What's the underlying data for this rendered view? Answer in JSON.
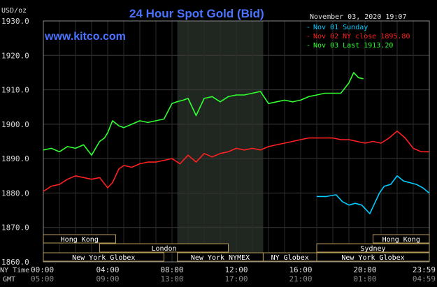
{
  "chart_data": {
    "type": "line",
    "title": "24 Hour Spot Gold (Bid)",
    "subtitle": "www.kitco.com",
    "date_label": "November 03, 2020 19:07",
    "ylabel": "USD/oz",
    "ylim": [
      1860,
      1930
    ],
    "xlim": [
      0,
      24
    ],
    "y_ticks": [
      "1930.0",
      "1920.0",
      "1910.0",
      "1900.0",
      "1890.0",
      "1880.0",
      "1870.0",
      "1860.0"
    ],
    "x_ticks_ny": [
      "00:00",
      "04:00",
      "08:00",
      "12:00",
      "16:00",
      "20:00",
      "23:59"
    ],
    "x_ticks_gmt": [
      "05:00",
      "09:00",
      "13:00",
      "17:00",
      "21:00",
      "01:00",
      "04:59"
    ],
    "x_row_labels": [
      "NY Time",
      "GMT"
    ],
    "shaded_hours": [
      8.33,
      13.67
    ],
    "legend": [
      {
        "dash": "-",
        "text": "Nov 01 Sunday",
        "color": "#00ccff"
      },
      {
        "dash": "-",
        "text": "Nov 02 NY close 1895.80",
        "color": "#ff2020"
      },
      {
        "dash": "-",
        "text": "Nov 03 Last 1913.20",
        "color": "#30ff30"
      }
    ],
    "sessions": [
      {
        "name": "Hong Kong",
        "row": 0,
        "start": 0,
        "end": 4.5
      },
      {
        "name": "Hong Kong",
        "row": 0,
        "start": 20.5,
        "end": 24
      },
      {
        "name": "London",
        "row": 1,
        "start": 3.5,
        "end": 11.5
      },
      {
        "name": "Sydney",
        "row": 1,
        "start": 17,
        "end": 24
      },
      {
        "name": "New York Globex",
        "row": 2,
        "start": 0,
        "end": 7.5
      },
      {
        "name": "New York NYMEX",
        "row": 2,
        "start": 8.33,
        "end": 13.67
      },
      {
        "name": "NY Globex",
        "row": 2,
        "start": 13.67,
        "end": 17
      },
      {
        "name": "New York Globex",
        "row": 2,
        "start": 17,
        "end": 24
      }
    ],
    "series": [
      {
        "color": "#00ccff",
        "x": [
          17.0,
          17.6,
          18.2,
          18.6,
          19.0,
          19.4,
          19.8,
          20.1,
          20.3,
          20.6,
          20.9,
          21.2,
          21.6,
          22.0,
          22.4,
          22.8,
          23.2,
          23.6,
          23.99
        ],
        "y": [
          1879.0,
          1879.0,
          1879.5,
          1877.5,
          1876.5,
          1877.0,
          1876.5,
          1875.0,
          1874.0,
          1877.0,
          1880.0,
          1882.0,
          1882.5,
          1885.0,
          1883.5,
          1883.0,
          1882.5,
          1881.5,
          1880.0
        ]
      },
      {
        "color": "#ff2020",
        "x": [
          0.0,
          0.5,
          1.0,
          1.5,
          2.0,
          2.5,
          3.0,
          3.5,
          4.0,
          4.3,
          4.7,
          5.0,
          5.5,
          6.0,
          6.5,
          7.0,
          7.5,
          8.0,
          8.5,
          9.0,
          9.5,
          10.0,
          10.5,
          11.0,
          11.5,
          12.0,
          12.5,
          13.0,
          13.5,
          14.0,
          14.5,
          15.0,
          15.5,
          16.0,
          16.5,
          17.0,
          17.5,
          18.0,
          18.5,
          19.0,
          19.5,
          20.0,
          20.5,
          21.0,
          21.5,
          22.0,
          22.5,
          23.0,
          23.5,
          23.99
        ],
        "y": [
          1880.5,
          1882.0,
          1882.5,
          1884.0,
          1885.0,
          1884.5,
          1884.0,
          1884.5,
          1881.5,
          1883.0,
          1887.0,
          1888.0,
          1887.5,
          1888.5,
          1889.0,
          1889.0,
          1889.5,
          1890.0,
          1888.5,
          1891.0,
          1889.0,
          1891.5,
          1890.5,
          1891.5,
          1892.0,
          1893.0,
          1892.5,
          1893.0,
          1892.5,
          1893.5,
          1894.0,
          1894.5,
          1895.0,
          1895.5,
          1896.0,
          1896.0,
          1896.0,
          1896.0,
          1895.5,
          1895.5,
          1895.0,
          1894.5,
          1895.0,
          1894.5,
          1896.0,
          1898.0,
          1896.0,
          1893.0,
          1892.0,
          1892.0
        ]
      },
      {
        "color": "#30ff30",
        "x": [
          0.0,
          0.5,
          1.0,
          1.5,
          2.0,
          2.5,
          3.0,
          3.5,
          3.8,
          4.0,
          4.3,
          4.7,
          5.0,
          5.5,
          6.0,
          6.5,
          7.0,
          7.5,
          8.0,
          8.3,
          8.7,
          9.0,
          9.5,
          10.0,
          10.5,
          11.0,
          11.5,
          12.0,
          12.5,
          13.0,
          13.5,
          14.0,
          14.5,
          15.0,
          15.5,
          16.0,
          16.5,
          17.0,
          17.5,
          18.0,
          18.5,
          19.0,
          19.3,
          19.6,
          19.9
        ],
        "y": [
          1892.5,
          1893.0,
          1892.0,
          1893.5,
          1893.0,
          1894.0,
          1891.0,
          1895.0,
          1896.0,
          1897.5,
          1901.0,
          1899.5,
          1899.0,
          1900.0,
          1901.0,
          1900.5,
          1901.0,
          1901.5,
          1906.0,
          1906.5,
          1907.0,
          1907.5,
          1902.5,
          1907.5,
          1908.0,
          1906.5,
          1908.0,
          1908.5,
          1908.5,
          1909.0,
          1909.5,
          1906.0,
          1906.5,
          1907.0,
          1906.5,
          1907.0,
          1908.0,
          1908.5,
          1909.0,
          1909.0,
          1909.0,
          1912.0,
          1915.0,
          1913.5,
          1913.2
        ]
      }
    ]
  }
}
